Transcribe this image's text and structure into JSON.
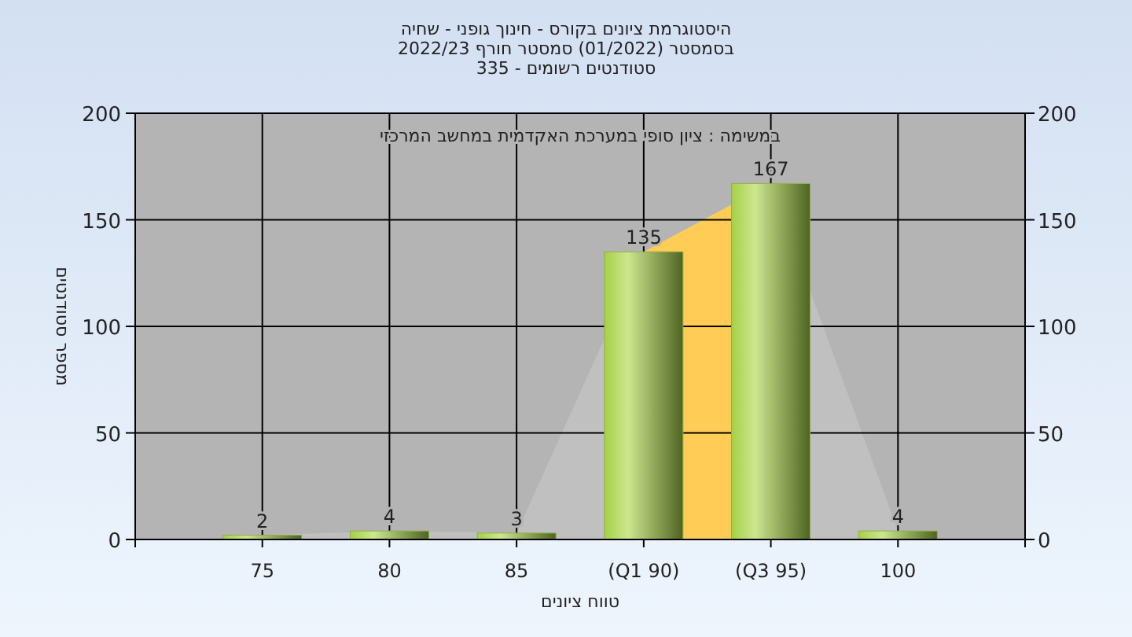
{
  "chart_data": {
    "type": "bar",
    "title": "היסטוגרמת ציונים בקורס - חינוך גופני - שחיה",
    "subtitle": "בסמסטר  (01/2022)  סמסטר חורף 2022/23\nסטודנטים רשומים - 335",
    "xlabel": "טווח ציונים",
    "ylabel": "מספר סטודנטים",
    "annotations": [
      "במשימה : ציון סופי במערכת האקדמית במחשב המרכזי"
    ],
    "categories": [
      "75",
      "80",
      "85",
      "(Q1 90)",
      "(Q3 95)",
      "100"
    ],
    "series": [
      {
        "type": "area",
        "color": "#c0c0c0",
        "values": [
          2,
          4,
          3,
          135,
          167,
          4
        ]
      },
      {
        "type": "area",
        "color": "#ffcc55",
        "values": [
          null,
          null,
          null,
          135,
          167,
          null
        ]
      },
      {
        "type": "bar",
        "color": "#8fb04a",
        "values": [
          2,
          4,
          3,
          135,
          167,
          4
        ],
        "value_labels": [
          "2",
          "4",
          "3",
          "135",
          "167",
          "4"
        ]
      }
    ],
    "ylim": [
      0,
      200
    ],
    "yticks": [
      0,
      50,
      100,
      150,
      200
    ],
    "y2lim": [
      0,
      200
    ],
    "y2ticks": [
      0,
      50,
      100,
      150,
      200
    ],
    "grid": true
  }
}
